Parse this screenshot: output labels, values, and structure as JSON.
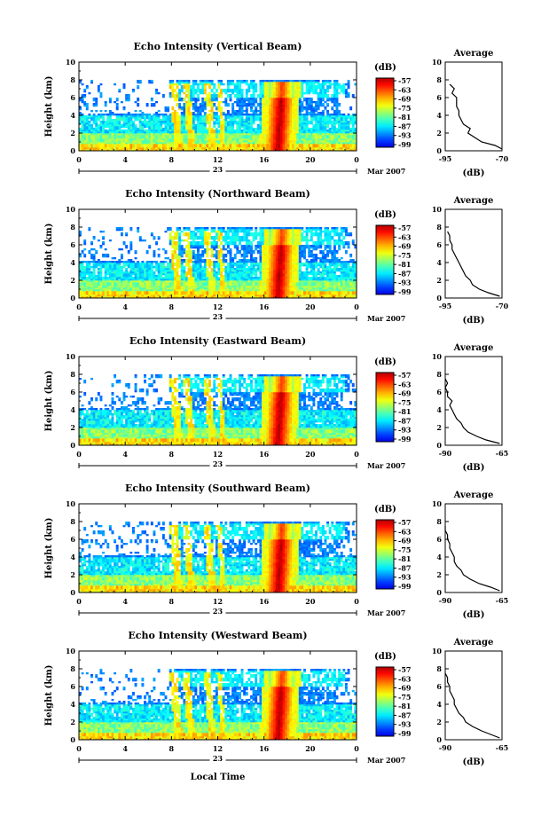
{
  "figure": {
    "xlabel": "Local Time",
    "date_suffix": "Mar 2007",
    "day_label": "23",
    "avg_title": "Average",
    "colorbar_unit": "(dB)",
    "avg_xlabel": "(dB)"
  },
  "chart_data": [
    {
      "type": "heatmap",
      "title": "Echo Intensity (Vertical Beam)",
      "ylabel": "Height (km)",
      "xlabel": "Local Time",
      "xlim": [
        0,
        24
      ],
      "ylim": [
        0,
        10
      ],
      "xticks": [
        "0",
        "4",
        "8",
        "12",
        "16",
        "20",
        "0"
      ],
      "yticks": [
        "0",
        "2",
        "4",
        "6",
        "8",
        "10"
      ],
      "colorbar": {
        "label": "(dB)",
        "ticks": [
          "-57",
          "-63",
          "-69",
          "-75",
          "-81",
          "-87",
          "-93",
          "-99"
        ]
      },
      "profile": {
        "title": "Average",
        "xlabel": "(dB)",
        "xticks": [
          "-95",
          "-70"
        ],
        "xlim": [
          -95,
          -70
        ],
        "heights": [
          0.2,
          0.6,
          1.0,
          1.5,
          2.0,
          2.5,
          3.0,
          3.5,
          4.0,
          4.5,
          5.0,
          5.5,
          6.0,
          6.5,
          7.0,
          7.5
        ],
        "values": [
          -70,
          -73,
          -79,
          -82,
          -85,
          -84,
          -87,
          -88,
          -89,
          -89,
          -90,
          -90,
          -90,
          -92,
          -91,
          -93
        ]
      }
    },
    {
      "type": "heatmap",
      "title": "Echo Intensity (Northward Beam)",
      "ylabel": "Height (km)",
      "xlabel": "Local Time",
      "xlim": [
        0,
        24
      ],
      "ylim": [
        0,
        10
      ],
      "xticks": [
        "0",
        "4",
        "8",
        "12",
        "16",
        "20",
        "0"
      ],
      "yticks": [
        "0",
        "2",
        "4",
        "6",
        "8",
        "10"
      ],
      "colorbar": {
        "label": "(dB)",
        "ticks": [
          "-57",
          "-63",
          "-69",
          "-75",
          "-81",
          "-87",
          "-93",
          "-99"
        ]
      },
      "profile": {
        "title": "Average",
        "xlabel": "(dB)",
        "xticks": [
          "-95",
          "-70"
        ],
        "xlim": [
          -95,
          -70
        ],
        "heights": [
          0.2,
          0.6,
          1.0,
          1.5,
          2.0,
          2.5,
          3.0,
          3.5,
          4.0,
          4.5,
          5.0,
          5.5,
          6.0,
          6.5,
          7.0,
          7.5
        ],
        "values": [
          -71,
          -76,
          -80,
          -83,
          -84,
          -86,
          -87,
          -88,
          -89,
          -90,
          -91,
          -92,
          -92,
          -93,
          -93,
          -94
        ]
      }
    },
    {
      "type": "heatmap",
      "title": "Echo Intensity (Eastward Beam)",
      "ylabel": "Height (km)",
      "xlabel": "Local Time",
      "xlim": [
        0,
        24
      ],
      "ylim": [
        0,
        10
      ],
      "xticks": [
        "0",
        "4",
        "8",
        "12",
        "16",
        "20",
        "0"
      ],
      "yticks": [
        "0",
        "2",
        "4",
        "6",
        "8",
        "10"
      ],
      "colorbar": {
        "label": "(dB)",
        "ticks": [
          "-57",
          "-63",
          "-69",
          "-75",
          "-81",
          "-87",
          "-93",
          "-99"
        ]
      },
      "profile": {
        "title": "Average",
        "xlabel": "(dB)",
        "xticks": [
          "-90",
          "-65"
        ],
        "xlim": [
          -90,
          -65
        ],
        "heights": [
          0.2,
          0.6,
          1.0,
          1.5,
          2.0,
          2.5,
          3.0,
          3.5,
          4.0,
          4.5,
          5.0,
          5.5,
          6.0,
          6.5,
          7.0,
          7.5
        ],
        "values": [
          -66,
          -72,
          -76,
          -80,
          -82,
          -83,
          -85,
          -86,
          -87,
          -88,
          -87,
          -89,
          -89,
          -90,
          -89,
          -90
        ]
      }
    },
    {
      "type": "heatmap",
      "title": "Echo Intensity (Southward Beam)",
      "ylabel": "Height (km)",
      "xlabel": "Local Time",
      "xlim": [
        0,
        24
      ],
      "ylim": [
        0,
        10
      ],
      "xticks": [
        "0",
        "4",
        "8",
        "12",
        "16",
        "20",
        "0"
      ],
      "yticks": [
        "0",
        "2",
        "4",
        "6",
        "8",
        "10"
      ],
      "colorbar": {
        "label": "(dB)",
        "ticks": [
          "-57",
          "-63",
          "-69",
          "-75",
          "-81",
          "-87",
          "-93",
          "-99"
        ]
      },
      "profile": {
        "title": "Average",
        "xlabel": "(dB)",
        "xticks": [
          "-90",
          "-65"
        ],
        "xlim": [
          -90,
          -65
        ],
        "heights": [
          0.2,
          0.6,
          1.0,
          1.5,
          2.0,
          2.5,
          3.0,
          3.5,
          4.0,
          4.5,
          5.0,
          5.5,
          6.0,
          6.5,
          7.0,
          7.5
        ],
        "values": [
          -66,
          -70,
          -75,
          -79,
          -82,
          -83,
          -85,
          -86,
          -86,
          -87,
          -88,
          -88,
          -89,
          -89,
          -90,
          -90
        ]
      }
    },
    {
      "type": "heatmap",
      "title": "Echo Intensity (Westward Beam)",
      "ylabel": "Height (km)",
      "xlabel": "Local Time",
      "xlim": [
        0,
        24
      ],
      "ylim": [
        0,
        10
      ],
      "xticks": [
        "0",
        "4",
        "8",
        "12",
        "16",
        "20",
        "0"
      ],
      "yticks": [
        "0",
        "2",
        "4",
        "6",
        "8",
        "10"
      ],
      "colorbar": {
        "label": "(dB)",
        "ticks": [
          "-57",
          "-63",
          "-69",
          "-75",
          "-81",
          "-87",
          "-93",
          "-99"
        ]
      },
      "profile": {
        "title": "Average",
        "xlabel": "(dB)",
        "xticks": [
          "-90",
          "-65"
        ],
        "xlim": [
          -90,
          -65
        ],
        "heights": [
          0.2,
          0.6,
          1.0,
          1.5,
          2.0,
          2.5,
          3.0,
          3.5,
          4.0,
          4.5,
          5.0,
          5.5,
          6.0,
          6.5,
          7.0,
          7.5
        ],
        "values": [
          -66,
          -70,
          -74,
          -78,
          -81,
          -82,
          -84,
          -85,
          -86,
          -86,
          -87,
          -88,
          -88,
          -89,
          -89,
          -90
        ]
      }
    }
  ]
}
